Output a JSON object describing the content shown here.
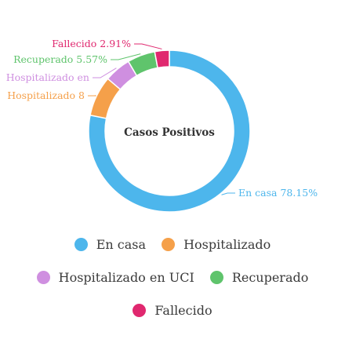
{
  "chart_data": {
    "type": "pie",
    "variant": "donut",
    "center_label": "Casos Positivos",
    "labels": [
      "En casa",
      "Hospitalizado",
      "Hospitalizado en UCI",
      "Recuperado",
      "Fallecido"
    ],
    "values": [
      78.15,
      8.06,
      5.31,
      5.57,
      2.91
    ],
    "slice_labels": [
      "En casa 78.15%",
      "Hospitalizado 8",
      "Hospitalizado en",
      "Recuperado 5.57%",
      "Fallecido 2.91%"
    ],
    "colors": [
      "#4db6ec",
      "#f5a04a",
      "#cf8fe0",
      "#5fc46c",
      "#e0286f"
    ],
    "legend_position": "bottom"
  },
  "legend": [
    {
      "label": "En casa",
      "color": "#4db6ec"
    },
    {
      "label": "Hospitalizado",
      "color": "#f5a04a"
    },
    {
      "label": "Hospitalizado en UCI",
      "color": "#cf8fe0"
    },
    {
      "label": "Recuperado",
      "color": "#5fc46c"
    },
    {
      "label": "Fallecido",
      "color": "#e0286f"
    }
  ]
}
